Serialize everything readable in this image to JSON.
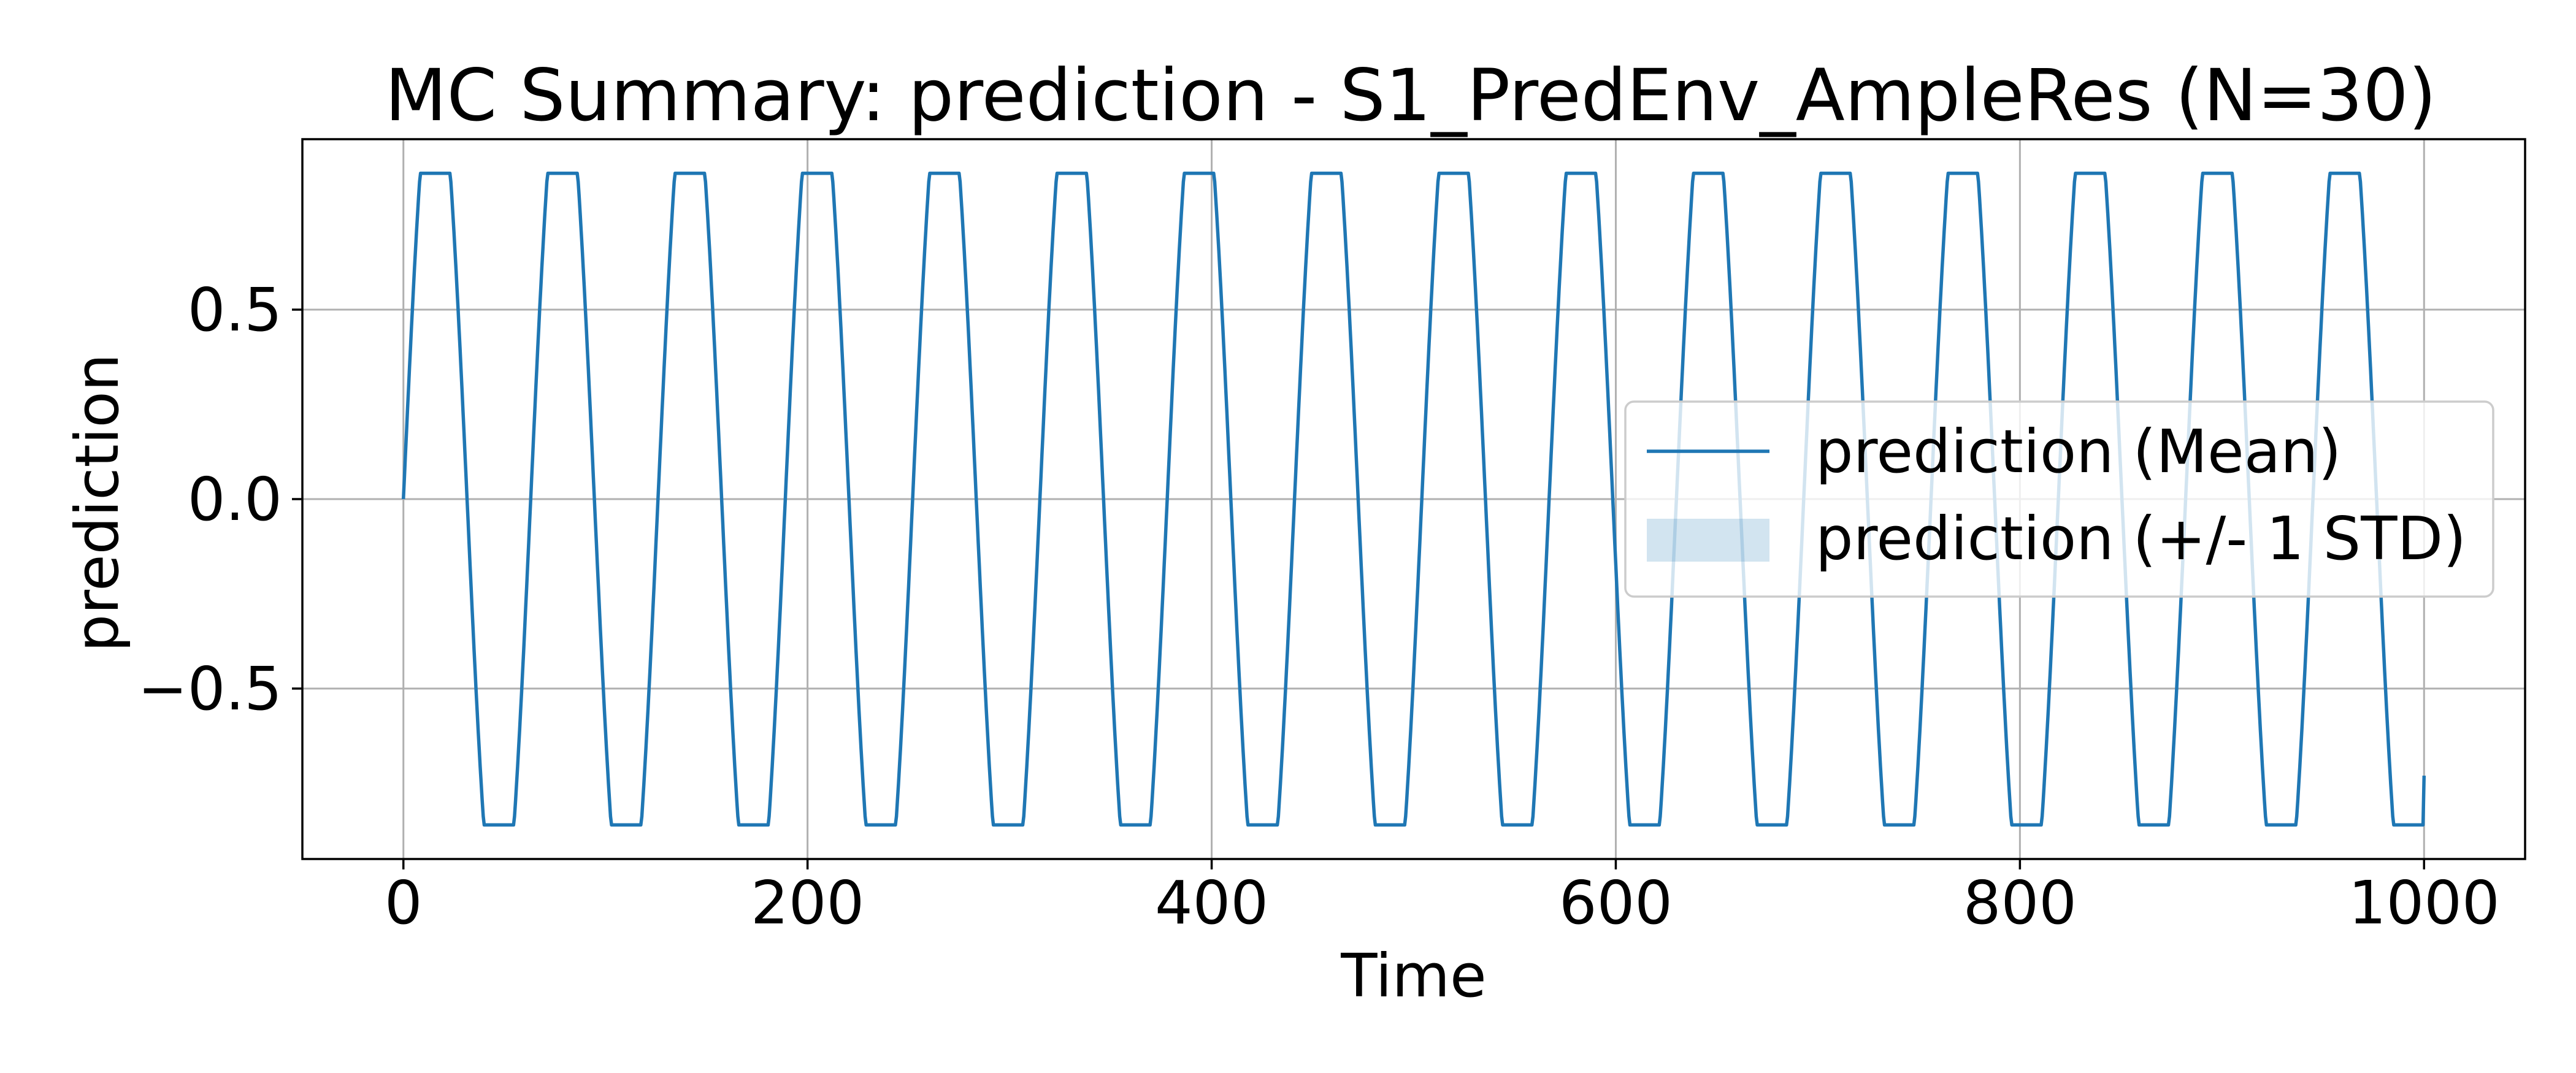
{
  "chart_data": {
    "type": "line",
    "title": "MC Summary: prediction - S1_PredEnv_AmpleRes (N=30)",
    "xlabel": "Time",
    "ylabel": "prediction",
    "xlim": [
      -50,
      1050
    ],
    "ylim": [
      -0.95,
      0.95
    ],
    "x_ticks": [
      0,
      200,
      400,
      600,
      800,
      1000
    ],
    "x_tick_labels": [
      "0",
      "200",
      "400",
      "600",
      "800",
      "1000"
    ],
    "y_ticks": [
      -0.5,
      0.0,
      0.5
    ],
    "y_tick_labels": [
      "−0.5",
      "0.0",
      "0.5"
    ],
    "grid": true,
    "legend_position": "center-right",
    "series": [
      {
        "name": "prediction (Mean)",
        "color": "#1f77b4",
        "x_start": 0,
        "x_end": 1000,
        "period": 63,
        "amplitude": 0.86,
        "final_value": -0.73
      }
    ],
    "band": {
      "name": "prediction (+/- 1 STD)",
      "color": "#1f77b4",
      "opacity": 0.2,
      "std": 0.0
    }
  }
}
